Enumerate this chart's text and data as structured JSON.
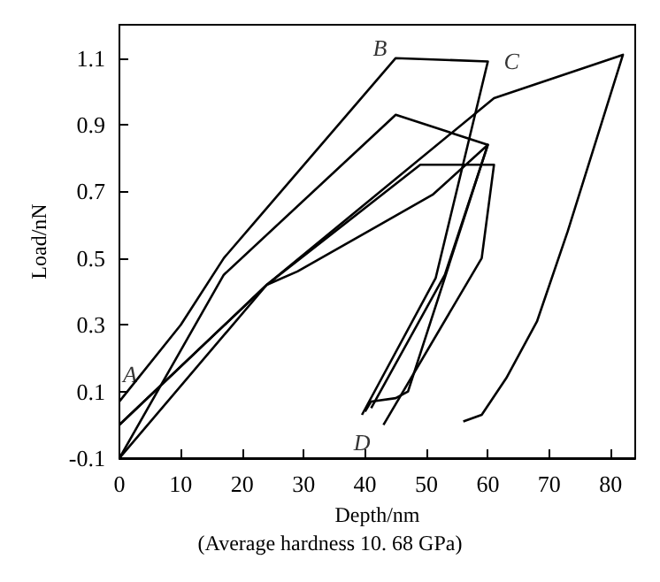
{
  "chart_data": {
    "type": "line",
    "xlabel": "Depth/nm",
    "ylabel": "Load/nN",
    "xlim": [
      0,
      84
    ],
    "ylim": [
      -0.1,
      1.2
    ],
    "xticks": [
      0,
      10,
      20,
      30,
      40,
      50,
      60,
      70,
      80
    ],
    "yticks": [
      -0.1,
      0.1,
      0.3,
      0.5,
      0.7,
      0.9,
      1.1
    ],
    "grid": false,
    "marker": "none",
    "line_style": "solid",
    "series": [
      {
        "color": "#000000",
        "x": [
          0,
          10,
          17,
          45,
          60,
          51.5,
          39.5
        ],
        "values": [
          0.07,
          0.3,
          0.5,
          1.1,
          1.09,
          0.44,
          0.03
        ]
      },
      {
        "color": "#000000",
        "x": [
          0,
          17,
          45,
          60,
          47,
          45,
          41,
          40
        ],
        "values": [
          -0.1,
          0.45,
          0.93,
          0.84,
          0.1,
          0.08,
          0.07,
          0.04
        ]
      },
      {
        "color": "#000000",
        "x": [
          0,
          24,
          29,
          51,
          60,
          53,
          41
        ],
        "values": [
          0,
          0.42,
          0.46,
          0.69,
          0.84,
          0.45,
          0.05
        ]
      },
      {
        "color": "#000000",
        "x": [
          0,
          24,
          49,
          61,
          59,
          43
        ],
        "values": [
          0,
          0.42,
          0.78,
          0.78,
          0.5,
          0
        ]
      },
      {
        "color": "#000000",
        "x": [
          0,
          24,
          61,
          82,
          73,
          68,
          63,
          59,
          56
        ],
        "values": [
          -0.1,
          0.42,
          0.98,
          1.11,
          0.58,
          0.31,
          0.14,
          0.03,
          0.01
        ]
      }
    ],
    "annotations": [
      {
        "text": "A",
        "x": 0,
        "y": 0.07
      },
      {
        "text": "B",
        "x": 45,
        "y": 1.1
      },
      {
        "text": "C",
        "x": 60,
        "y": 1.09
      },
      {
        "text": "D",
        "x": 39.5,
        "y": 0.03
      },
      "(Average hardness 10. 68 GPa)"
    ]
  }
}
